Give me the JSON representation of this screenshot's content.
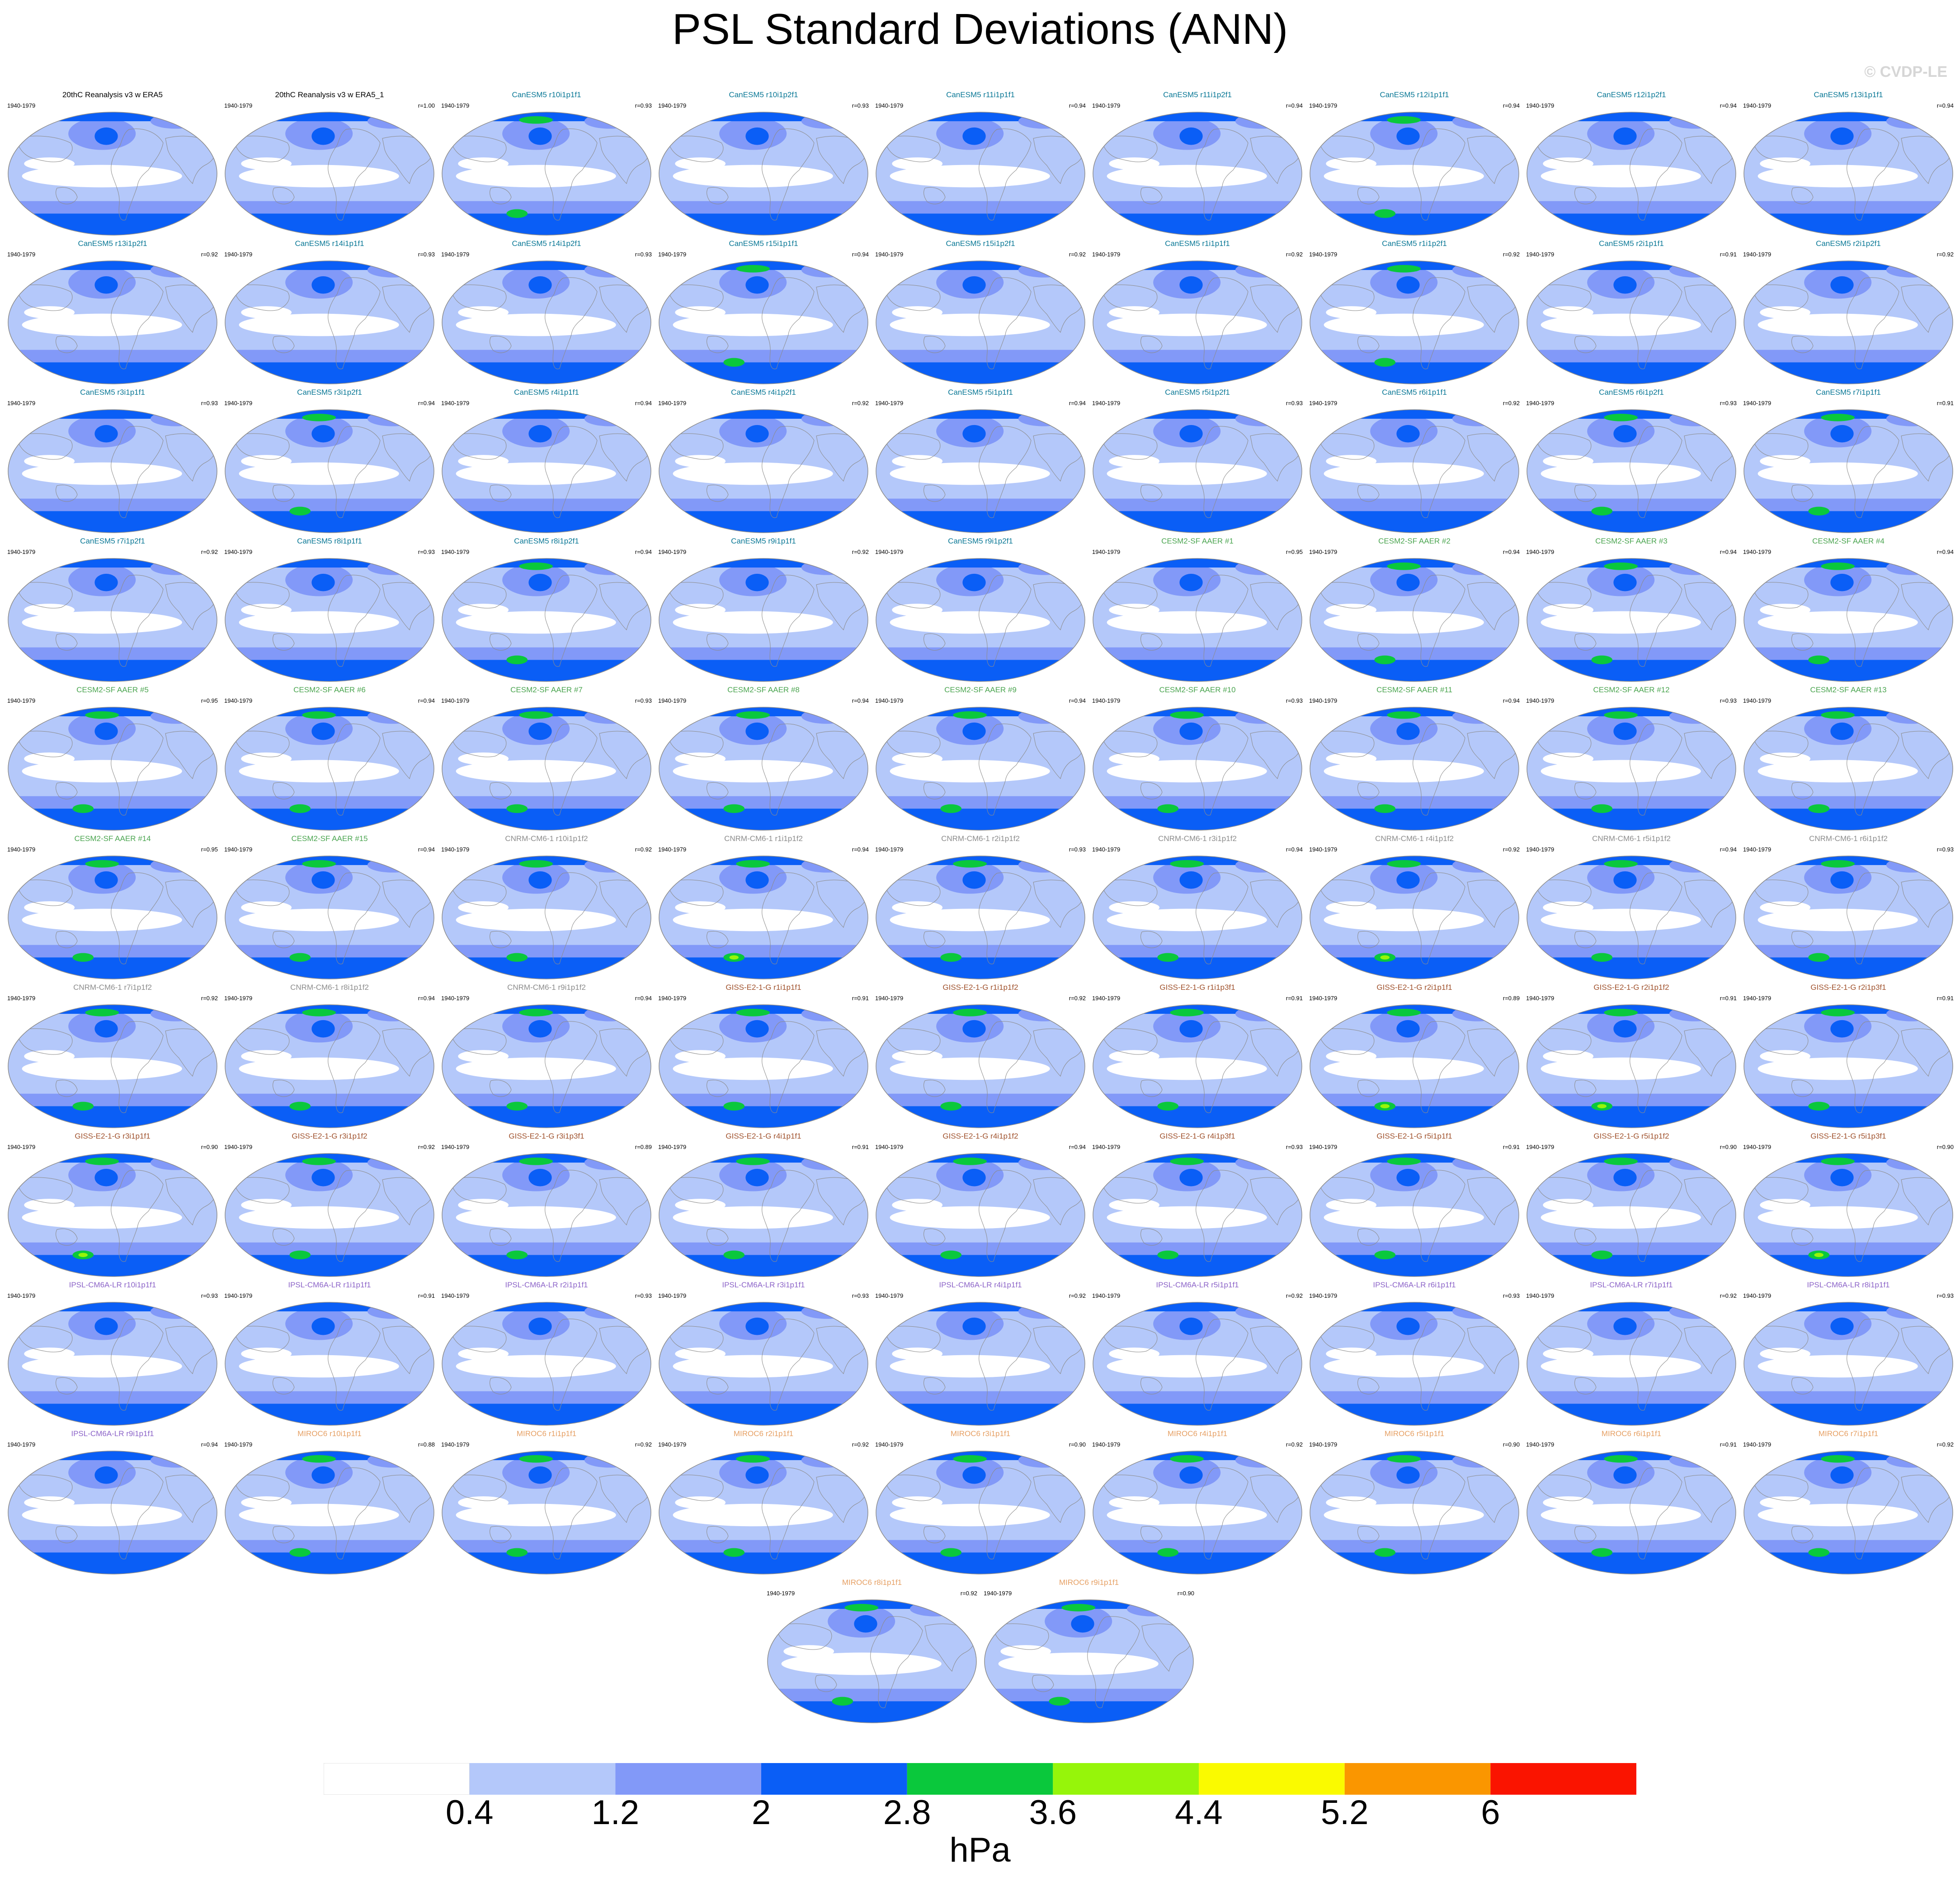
{
  "title": "PSL Standard Deviations (ANN)",
  "copyright": "© CVDP-LE",
  "colors": {
    "ocean": "#b4c8fa",
    "land": "#ffffff",
    "coast": "#8c8c8c"
  },
  "chart_data": {
    "type": "map-panels",
    "variable": "PSL",
    "statistic": "Standard Deviations",
    "season": "ANN",
    "units": "hPa",
    "colorbar": {
      "levels": [
        0.4,
        1.2,
        2,
        2.8,
        3.6,
        4.4,
        5.2,
        6
      ],
      "level_labels": [
        "0.4",
        "1.2",
        "2",
        "2.8",
        "3.6",
        "4.4",
        "5.2",
        "6"
      ],
      "colors": [
        "#ffffff",
        "#b4c8fa",
        "#8299f8",
        "#0a5ef6",
        "#0ac83c",
        "#96f50a",
        "#fafa00",
        "#fa9600",
        "#fa1400"
      ]
    },
    "panels": [
      {
        "name": "20thC Reanalysis v3 w ERA5",
        "period": "1940-1979",
        "r": "",
        "color": "#000000",
        "level": 0
      },
      {
        "name": "20thC Reanalysis v3 w ERA5_1",
        "period": "1940-1979",
        "r": "r=1.00",
        "color": "#000000",
        "level": 0
      },
      {
        "name": "CanESM5 r10i1p1f1",
        "period": "1940-1979",
        "r": "r=0.93",
        "color": "#0a7896",
        "level": 1
      },
      {
        "name": "CanESM5 r10i1p2f1",
        "period": "1940-1979",
        "r": "r=0.93",
        "color": "#0a7896",
        "level": 0
      },
      {
        "name": "CanESM5 r11i1p1f1",
        "period": "1940-1979",
        "r": "r=0.94",
        "color": "#0a7896",
        "level": 0
      },
      {
        "name": "CanESM5 r11i1p2f1",
        "period": "1940-1979",
        "r": "r=0.94",
        "color": "#0a7896",
        "level": 0
      },
      {
        "name": "CanESM5 r12i1p1f1",
        "period": "1940-1979",
        "r": "r=0.94",
        "color": "#0a7896",
        "level": 1
      },
      {
        "name": "CanESM5 r12i1p2f1",
        "period": "1940-1979",
        "r": "r=0.94",
        "color": "#0a7896",
        "level": 0
      },
      {
        "name": "CanESM5 r13i1p1f1",
        "period": "1940-1979",
        "r": "r=0.94",
        "color": "#0a7896",
        "level": 0
      },
      {
        "name": "CanESM5 r13i1p2f1",
        "period": "1940-1979",
        "r": "r=0.92",
        "color": "#0a7896",
        "level": 0
      },
      {
        "name": "CanESM5 r14i1p1f1",
        "period": "1940-1979",
        "r": "r=0.93",
        "color": "#0a7896",
        "level": 0
      },
      {
        "name": "CanESM5 r14i1p2f1",
        "period": "1940-1979",
        "r": "r=0.93",
        "color": "#0a7896",
        "level": 0
      },
      {
        "name": "CanESM5 r15i1p1f1",
        "period": "1940-1979",
        "r": "r=0.94",
        "color": "#0a7896",
        "level": 1
      },
      {
        "name": "CanESM5 r15i1p2f1",
        "period": "1940-1979",
        "r": "r=0.92",
        "color": "#0a7896",
        "level": 0
      },
      {
        "name": "CanESM5 r1i1p1f1",
        "period": "1940-1979",
        "r": "r=0.92",
        "color": "#0a7896",
        "level": 0
      },
      {
        "name": "CanESM5 r1i1p2f1",
        "period": "1940-1979",
        "r": "r=0.92",
        "color": "#0a7896",
        "level": 1
      },
      {
        "name": "CanESM5 r2i1p1f1",
        "period": "1940-1979",
        "r": "r=0.91",
        "color": "#0a7896",
        "level": 0
      },
      {
        "name": "CanESM5 r2i1p2f1",
        "period": "1940-1979",
        "r": "r=0.92",
        "color": "#0a7896",
        "level": 0
      },
      {
        "name": "CanESM5 r3i1p1f1",
        "period": "1940-1979",
        "r": "r=0.93",
        "color": "#0a7896",
        "level": 0
      },
      {
        "name": "CanESM5 r3i1p2f1",
        "period": "1940-1979",
        "r": "r=0.94",
        "color": "#0a7896",
        "level": 1
      },
      {
        "name": "CanESM5 r4i1p1f1",
        "period": "1940-1979",
        "r": "r=0.94",
        "color": "#0a7896",
        "level": 0
      },
      {
        "name": "CanESM5 r4i1p2f1",
        "period": "1940-1979",
        "r": "r=0.92",
        "color": "#0a7896",
        "level": 0
      },
      {
        "name": "CanESM5 r5i1p1f1",
        "period": "1940-1979",
        "r": "r=0.94",
        "color": "#0a7896",
        "level": 0
      },
      {
        "name": "CanESM5 r5i1p2f1",
        "period": "1940-1979",
        "r": "r=0.93",
        "color": "#0a7896",
        "level": 0
      },
      {
        "name": "CanESM5 r6i1p1f1",
        "period": "1940-1979",
        "r": "r=0.92",
        "color": "#0a7896",
        "level": 0
      },
      {
        "name": "CanESM5 r6i1p2f1",
        "period": "1940-1979",
        "r": "r=0.93",
        "color": "#0a7896",
        "level": 1
      },
      {
        "name": "CanESM5 r7i1p1f1",
        "period": "1940-1979",
        "r": "r=0.91",
        "color": "#0a7896",
        "level": 1
      },
      {
        "name": "CanESM5 r7i1p2f1",
        "period": "1940-1979",
        "r": "r=0.92",
        "color": "#0a7896",
        "level": 0
      },
      {
        "name": "CanESM5 r8i1p1f1",
        "period": "1940-1979",
        "r": "r=0.93",
        "color": "#0a7896",
        "level": 0
      },
      {
        "name": "CanESM5 r8i1p2f1",
        "period": "1940-1979",
        "r": "r=0.94",
        "color": "#0a7896",
        "level": 1
      },
      {
        "name": "CanESM5 r9i1p1f1",
        "period": "1940-1979",
        "r": "r=0.92",
        "color": "#0a7896",
        "level": 0
      },
      {
        "name": "CanESM5 r9i1p2f1",
        "period": "1940-1979",
        "r": "",
        "color": "#0a7896",
        "level": 0
      },
      {
        "name": "CESM2-SF AAER #1",
        "period": "1940-1979",
        "r": "r=0.95",
        "color": "#4ba550",
        "level": 0
      },
      {
        "name": "CESM2-SF AAER #2",
        "period": "1940-1979",
        "r": "r=0.94",
        "color": "#4ba550",
        "level": 1
      },
      {
        "name": "CESM2-SF AAER #3",
        "period": "1940-1979",
        "r": "r=0.94",
        "color": "#4ba550",
        "level": 1
      },
      {
        "name": "CESM2-SF AAER #4",
        "period": "1940-1979",
        "r": "r=0.94",
        "color": "#4ba550",
        "level": 1
      },
      {
        "name": "CESM2-SF AAER #5",
        "period": "1940-1979",
        "r": "r=0.95",
        "color": "#4ba550",
        "level": 1
      },
      {
        "name": "CESM2-SF AAER #6",
        "period": "1940-1979",
        "r": "r=0.94",
        "color": "#4ba550",
        "level": 1
      },
      {
        "name": "CESM2-SF AAER #7",
        "period": "1940-1979",
        "r": "r=0.93",
        "color": "#4ba550",
        "level": 1
      },
      {
        "name": "CESM2-SF AAER #8",
        "period": "1940-1979",
        "r": "r=0.94",
        "color": "#4ba550",
        "level": 1
      },
      {
        "name": "CESM2-SF AAER #9",
        "period": "1940-1979",
        "r": "r=0.94",
        "color": "#4ba550",
        "level": 1
      },
      {
        "name": "CESM2-SF AAER #10",
        "period": "1940-1979",
        "r": "r=0.93",
        "color": "#4ba550",
        "level": 1
      },
      {
        "name": "CESM2-SF AAER #11",
        "period": "1940-1979",
        "r": "r=0.94",
        "color": "#4ba550",
        "level": 1
      },
      {
        "name": "CESM2-SF AAER #12",
        "period": "1940-1979",
        "r": "r=0.93",
        "color": "#4ba550",
        "level": 1
      },
      {
        "name": "CESM2-SF AAER #13",
        "period": "1940-1979",
        "r": "",
        "color": "#4ba550",
        "level": 1
      },
      {
        "name": "CESM2-SF AAER #14",
        "period": "1940-1979",
        "r": "r=0.95",
        "color": "#4ba550",
        "level": 1
      },
      {
        "name": "CESM2-SF AAER #15",
        "period": "1940-1979",
        "r": "r=0.94",
        "color": "#4ba550",
        "level": 1
      },
      {
        "name": "CNRM-CM6-1 r10i1p1f2",
        "period": "1940-1979",
        "r": "r=0.92",
        "color": "#8c8c8c",
        "level": 1
      },
      {
        "name": "CNRM-CM6-1 r1i1p1f2",
        "period": "1940-1979",
        "r": "r=0.94",
        "color": "#8c8c8c",
        "level": 2
      },
      {
        "name": "CNRM-CM6-1 r2i1p1f2",
        "period": "1940-1979",
        "r": "r=0.93",
        "color": "#8c8c8c",
        "level": 1
      },
      {
        "name": "CNRM-CM6-1 r3i1p1f2",
        "period": "1940-1979",
        "r": "r=0.94",
        "color": "#8c8c8c",
        "level": 1
      },
      {
        "name": "CNRM-CM6-1 r4i1p1f2",
        "period": "1940-1979",
        "r": "r=0.92",
        "color": "#8c8c8c",
        "level": 2
      },
      {
        "name": "CNRM-CM6-1 r5i1p1f2",
        "period": "1940-1979",
        "r": "r=0.94",
        "color": "#8c8c8c",
        "level": 1
      },
      {
        "name": "CNRM-CM6-1 r6i1p1f2",
        "period": "1940-1979",
        "r": "r=0.93",
        "color": "#8c8c8c",
        "level": 1
      },
      {
        "name": "CNRM-CM6-1 r7i1p1f2",
        "period": "1940-1979",
        "r": "r=0.92",
        "color": "#8c8c8c",
        "level": 1
      },
      {
        "name": "CNRM-CM6-1 r8i1p1f2",
        "period": "1940-1979",
        "r": "r=0.94",
        "color": "#8c8c8c",
        "level": 1
      },
      {
        "name": "CNRM-CM6-1 r9i1p1f2",
        "period": "1940-1979",
        "r": "r=0.94",
        "color": "#8c8c8c",
        "level": 1
      },
      {
        "name": "GISS-E2-1-G r1i1p1f1",
        "period": "1940-1979",
        "r": "r=0.91",
        "color": "#a0522d",
        "level": 1
      },
      {
        "name": "GISS-E2-1-G r1i1p1f2",
        "period": "1940-1979",
        "r": "r=0.92",
        "color": "#a0522d",
        "level": 1
      },
      {
        "name": "GISS-E2-1-G r1i1p3f1",
        "period": "1940-1979",
        "r": "r=0.91",
        "color": "#a0522d",
        "level": 1
      },
      {
        "name": "GISS-E2-1-G r2i1p1f1",
        "period": "1940-1979",
        "r": "r=0.89",
        "color": "#a0522d",
        "level": 2
      },
      {
        "name": "GISS-E2-1-G r2i1p1f2",
        "period": "1940-1979",
        "r": "r=0.91",
        "color": "#a0522d",
        "level": 2
      },
      {
        "name": "GISS-E2-1-G r2i1p3f1",
        "period": "1940-1979",
        "r": "r=0.91",
        "color": "#a0522d",
        "level": 1
      },
      {
        "name": "GISS-E2-1-G r3i1p1f1",
        "period": "1940-1979",
        "r": "r=0.90",
        "color": "#a0522d",
        "level": 2
      },
      {
        "name": "GISS-E2-1-G r3i1p1f2",
        "period": "1940-1979",
        "r": "r=0.92",
        "color": "#a0522d",
        "level": 1
      },
      {
        "name": "GISS-E2-1-G r3i1p3f1",
        "period": "1940-1979",
        "r": "r=0.89",
        "color": "#a0522d",
        "level": 1
      },
      {
        "name": "GISS-E2-1-G r4i1p1f1",
        "period": "1940-1979",
        "r": "r=0.91",
        "color": "#a0522d",
        "level": 1
      },
      {
        "name": "GISS-E2-1-G r4i1p1f2",
        "period": "1940-1979",
        "r": "r=0.94",
        "color": "#a0522d",
        "level": 1
      },
      {
        "name": "GISS-E2-1-G r4i1p3f1",
        "period": "1940-1979",
        "r": "r=0.93",
        "color": "#a0522d",
        "level": 1
      },
      {
        "name": "GISS-E2-1-G r5i1p1f1",
        "period": "1940-1979",
        "r": "r=0.91",
        "color": "#a0522d",
        "level": 1
      },
      {
        "name": "GISS-E2-1-G r5i1p1f2",
        "period": "1940-1979",
        "r": "r=0.90",
        "color": "#a0522d",
        "level": 1
      },
      {
        "name": "GISS-E2-1-G r5i1p3f1",
        "period": "1940-1979",
        "r": "r=0.90",
        "color": "#a0522d",
        "level": 2
      },
      {
        "name": "IPSL-CM6A-LR r10i1p1f1",
        "period": "1940-1979",
        "r": "r=0.93",
        "color": "#8c64c8",
        "level": 0
      },
      {
        "name": "IPSL-CM6A-LR r1i1p1f1",
        "period": "1940-1979",
        "r": "r=0.91",
        "color": "#8c64c8",
        "level": 0
      },
      {
        "name": "IPSL-CM6A-LR r2i1p1f1",
        "period": "1940-1979",
        "r": "r=0.93",
        "color": "#8c64c8",
        "level": 0
      },
      {
        "name": "IPSL-CM6A-LR r3i1p1f1",
        "period": "1940-1979",
        "r": "r=0.93",
        "color": "#8c64c8",
        "level": 0
      },
      {
        "name": "IPSL-CM6A-LR r4i1p1f1",
        "period": "1940-1979",
        "r": "r=0.92",
        "color": "#8c64c8",
        "level": 0
      },
      {
        "name": "IPSL-CM6A-LR r5i1p1f1",
        "period": "1940-1979",
        "r": "r=0.92",
        "color": "#8c64c8",
        "level": 0
      },
      {
        "name": "IPSL-CM6A-LR r6i1p1f1",
        "period": "1940-1979",
        "r": "r=0.93",
        "color": "#8c64c8",
        "level": 0
      },
      {
        "name": "IPSL-CM6A-LR r7i1p1f1",
        "period": "1940-1979",
        "r": "r=0.92",
        "color": "#8c64c8",
        "level": 0
      },
      {
        "name": "IPSL-CM6A-LR r8i1p1f1",
        "period": "1940-1979",
        "r": "r=0.93",
        "color": "#8c64c8",
        "level": 0
      },
      {
        "name": "IPSL-CM6A-LR r9i1p1f1",
        "period": "1940-1979",
        "r": "r=0.94",
        "color": "#8c64c8",
        "level": 0
      },
      {
        "name": "MIROC6 r10i1p1f1",
        "period": "1940-1979",
        "r": "r=0.88",
        "color": "#e6a064",
        "level": 1
      },
      {
        "name": "MIROC6 r1i1p1f1",
        "period": "1940-1979",
        "r": "r=0.92",
        "color": "#e6a064",
        "level": 1
      },
      {
        "name": "MIROC6 r2i1p1f1",
        "period": "1940-1979",
        "r": "r=0.92",
        "color": "#e6a064",
        "level": 1
      },
      {
        "name": "MIROC6 r3i1p1f1",
        "period": "1940-1979",
        "r": "r=0.90",
        "color": "#e6a064",
        "level": 1
      },
      {
        "name": "MIROC6 r4i1p1f1",
        "period": "1940-1979",
        "r": "r=0.92",
        "color": "#e6a064",
        "level": 1
      },
      {
        "name": "MIROC6 r5i1p1f1",
        "period": "1940-1979",
        "r": "r=0.90",
        "color": "#e6a064",
        "level": 1
      },
      {
        "name": "MIROC6 r6i1p1f1",
        "period": "1940-1979",
        "r": "r=0.91",
        "color": "#e6a064",
        "level": 1
      },
      {
        "name": "MIROC6 r7i1p1f1",
        "period": "1940-1979",
        "r": "r=0.92",
        "color": "#e6a064",
        "level": 1
      },
      {
        "name": "MIROC6 r8i1p1f1",
        "period": "1940-1979",
        "r": "r=0.92",
        "color": "#e6a064",
        "level": 1
      },
      {
        "name": "MIROC6 r9i1p1f1",
        "period": "1940-1979",
        "r": "r=0.90",
        "color": "#e6a064",
        "level": 1
      }
    ]
  }
}
